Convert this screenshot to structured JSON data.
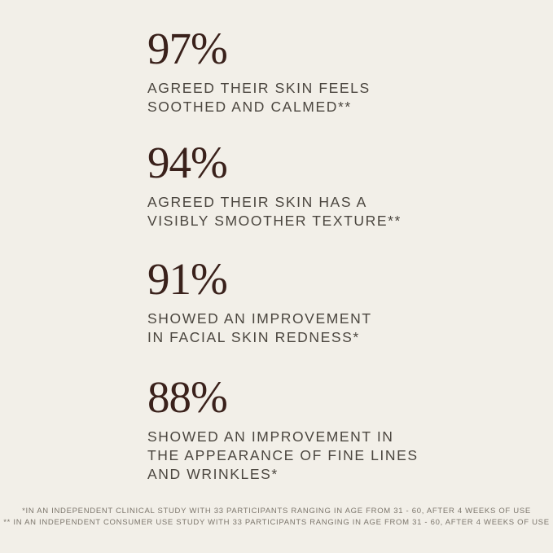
{
  "colors": {
    "background": "#F2EFE8",
    "stat_number": "#3A211B",
    "caption_text": "#4B463F",
    "footnote_text": "#7C766C"
  },
  "stats": [
    {
      "value": "97%",
      "lines": [
        "AGREED THEIR SKIN FEELS",
        "SOOTHED AND CALMED**"
      ]
    },
    {
      "value": "94%",
      "lines": [
        "AGREED THEIR SKIN HAS A",
        "VISIBLY SMOOTHER TEXTURE**"
      ]
    },
    {
      "value": "91%",
      "lines": [
        "SHOWED AN IMPROVEMENT",
        "IN FACIAL SKIN REDNESS*"
      ]
    },
    {
      "value": "88%",
      "lines": [
        "SHOWED AN IMPROVEMENT IN",
        "THE APPEARANCE OF FINE LINES",
        "AND WRINKLES*"
      ]
    }
  ],
  "footnotes": [
    "*IN AN INDEPENDENT CLINICAL STUDY WITH 33 PARTICIPANTS RANGING IN AGE FROM 31 - 60, AFTER 4 WEEKS OF USE",
    "** IN AN INDEPENDENT CONSUMER USE STUDY WITH 33 PARTICIPANTS RANGING IN AGE FROM 31 - 60, AFTER 4 WEEKS OF USE"
  ]
}
